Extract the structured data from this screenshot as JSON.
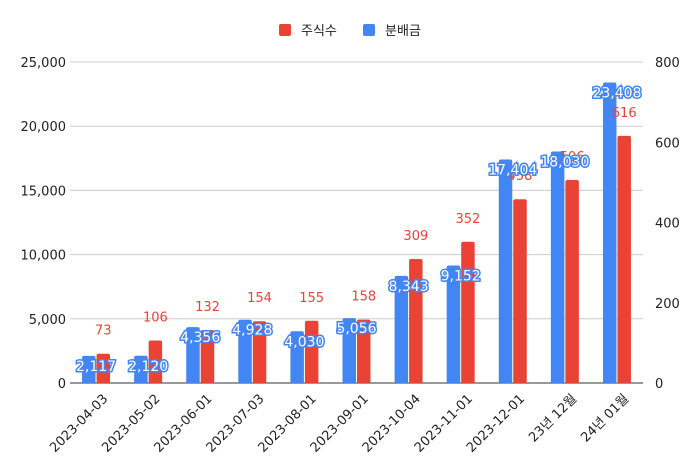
{
  "chart_data": {
    "type": "bar",
    "categories": [
      "2023-04-03",
      "2023-05-02",
      "2023-06-01",
      "2023-07-03",
      "2023-08-01",
      "2023-09-01",
      "2023-10-04",
      "2023-11-01",
      "2023-12-01",
      "23년 12월",
      "24년 01월"
    ],
    "series": [
      {
        "name": "주식수",
        "axis": "right",
        "color": "#ea4335",
        "values": [
          73,
          106,
          132,
          154,
          155,
          158,
          309,
          352,
          458,
          506,
          616
        ],
        "labels": [
          "73",
          "106",
          "132",
          "154",
          "155",
          "158",
          "309",
          "352",
          "458",
          "506",
          "616"
        ]
      },
      {
        "name": "분배금",
        "axis": "left",
        "color": "#4285f4",
        "values": [
          2117,
          2120,
          4356,
          4928,
          4030,
          5056,
          8343,
          9152,
          17404,
          18030,
          23408
        ],
        "labels": [
          "2,117",
          "2,120",
          "4,356",
          "4,928",
          "4,030",
          "5,056",
          "8,343",
          "9,152",
          "17,404",
          "18,030",
          "23,408"
        ]
      }
    ],
    "left_axis": {
      "min": 0,
      "max": 25000,
      "ticks": [
        "0",
        "5,000",
        "10,000",
        "15,000",
        "20,000",
        "25,000"
      ]
    },
    "right_axis": {
      "min": 0,
      "max": 800,
      "ticks": [
        "0",
        "200",
        "400",
        "600",
        "800"
      ]
    },
    "legend": [
      {
        "name": "주식수",
        "color": "#ea4335"
      },
      {
        "name": "분배금",
        "color": "#4285f4"
      }
    ],
    "legend_position": "top-center",
    "grid": true
  }
}
